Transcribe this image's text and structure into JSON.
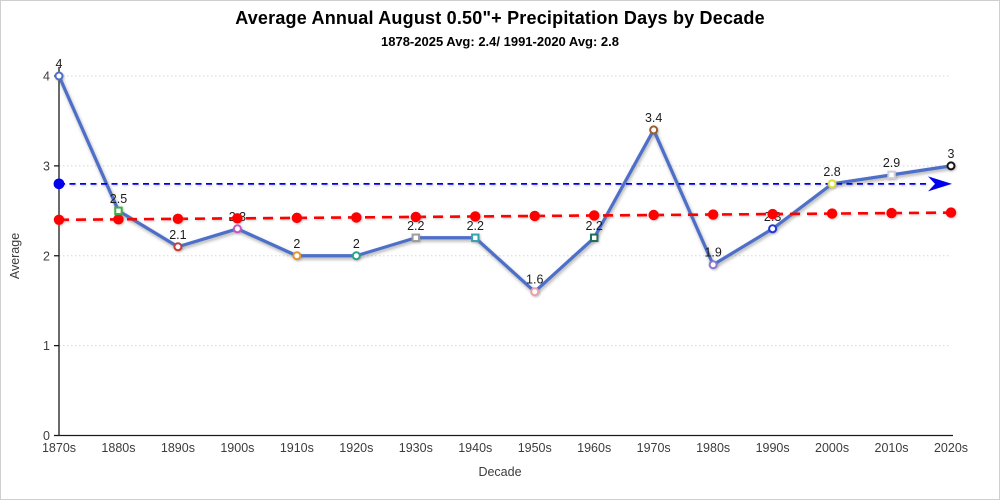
{
  "chart_data": {
    "type": "line",
    "title": "Average Annual August 0.50\"+ Precipitation Days by Decade",
    "subtitle": "1878-2025 Avg: 2.4/ 1991-2020 Avg: 2.8",
    "xlabel": "Decade",
    "ylabel": "Average",
    "ylim": [
      0,
      4
    ],
    "yticks": [
      0,
      1,
      2,
      3,
      4
    ],
    "grid": "horizontal-dotted",
    "legend": "none",
    "categories": [
      "1870s",
      "1880s",
      "1890s",
      "1900s",
      "1910s",
      "1920s",
      "1930s",
      "1940s",
      "1950s",
      "1960s",
      "1970s",
      "1980s",
      "1990s",
      "2000s",
      "2010s",
      "2020s"
    ],
    "series": [
      {
        "name": "decade-average-days",
        "type": "line",
        "color": "#4d6fc9",
        "values": [
          4,
          2.5,
          2.1,
          2.3,
          2,
          2,
          2.2,
          2.2,
          1.6,
          2.2,
          3.4,
          1.9,
          2.3,
          2.8,
          2.9,
          3
        ],
        "point_labels": [
          "4",
          "2.5",
          "2.1",
          "2.3",
          "2",
          "2",
          "2.2",
          "2.2",
          "1.6",
          "2.2",
          "3.4",
          "1.9",
          "2.3",
          "2.8",
          "2.9",
          "3"
        ],
        "markers": [
          {
            "shape": "circle",
            "color": "#4d6fc9"
          },
          {
            "shape": "square",
            "color": "#3fae49"
          },
          {
            "shape": "circle",
            "color": "#c43b3b"
          },
          {
            "shape": "circle",
            "color": "#c557c9"
          },
          {
            "shape": "circle",
            "color": "#e2952f"
          },
          {
            "shape": "circle",
            "color": "#23a38b"
          },
          {
            "shape": "square",
            "color": "#9e9e9e"
          },
          {
            "shape": "square",
            "color": "#35a3ad"
          },
          {
            "shape": "circle",
            "color": "#e9a0ab"
          },
          {
            "shape": "square",
            "color": "#1f6f60"
          },
          {
            "shape": "circle",
            "color": "#9a5b2d"
          },
          {
            "shape": "circle",
            "color": "#8d75d4"
          },
          {
            "shape": "circle",
            "color": "#2038d8"
          },
          {
            "shape": "circle",
            "color": "#dfdd3a"
          },
          {
            "shape": "square",
            "color": "#cfcfd8"
          },
          {
            "shape": "circle",
            "color": "#141414"
          }
        ]
      },
      {
        "name": "trend-1878-2025-average-2.4",
        "type": "linear-trend",
        "style": "dashed",
        "color": "#ff0000",
        "start": 2.4,
        "end": 2.48,
        "average_value": 2.4
      },
      {
        "name": "reference-1991-2020-average",
        "type": "horizontal-reference",
        "style": "dashed",
        "color": "#0000ee",
        "value": 2.8,
        "arrow": true
      }
    ]
  }
}
